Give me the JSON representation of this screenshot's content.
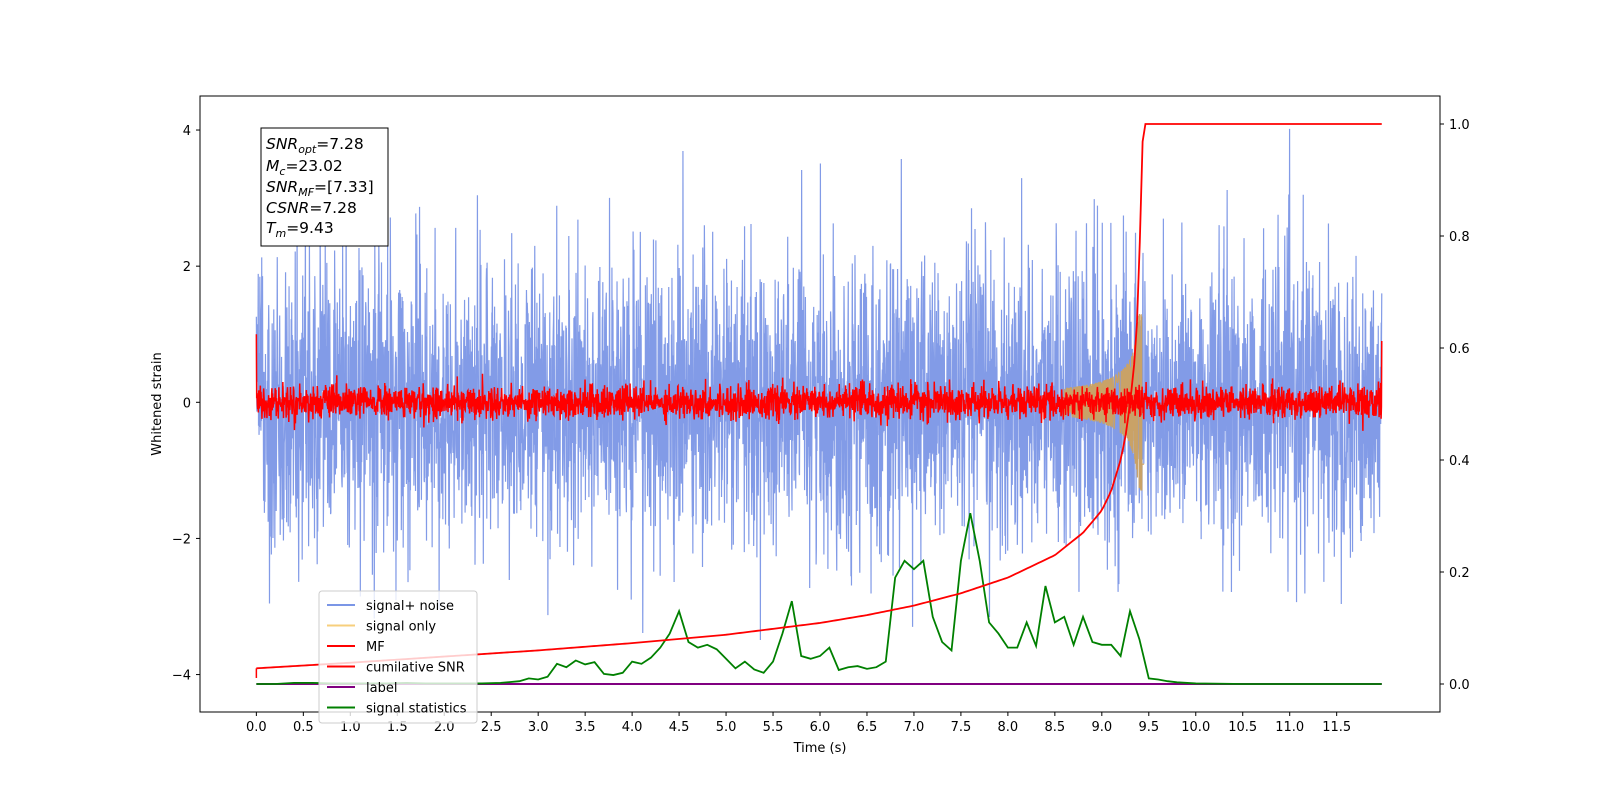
{
  "chart_data": {
    "type": "line",
    "xlabel": "Time (s)",
    "ylabel": "Whitened strain",
    "xlim": [
      -0.6,
      12.6
    ],
    "ylim": [
      -4.55,
      4.5
    ],
    "y2lim": [
      -0.05,
      1.05
    ],
    "xticks": [
      "0.0",
      "0.5",
      "1.0",
      "1.5",
      "2.0",
      "2.5",
      "3.0",
      "3.5",
      "4.0",
      "4.5",
      "5.0",
      "5.5",
      "6.0",
      "6.5",
      "7.0",
      "7.5",
      "8.0",
      "8.5",
      "9.0",
      "9.5",
      "10.0",
      "10.5",
      "11.0",
      "11.5"
    ],
    "yticks_left": [
      "4",
      "2",
      "0",
      "−2",
      "−4"
    ],
    "yticks_right": [
      "1.0",
      "0.8",
      "0.6",
      "0.4",
      "0.2",
      "0.0"
    ],
    "legend_position": "lower-left",
    "legend": [
      {
        "label": "signal+ noise",
        "color": "#7b96e6"
      },
      {
        "label": "signal only",
        "color": "#f7cf7c"
      },
      {
        "label": "MF",
        "color": "#ff0000"
      },
      {
        "label": "cumilative SNR",
        "color": "#ff0000"
      },
      {
        "label": "label",
        "color": "#800080"
      },
      {
        "label": "signal statistics",
        "color": "#008000"
      }
    ],
    "info_box": {
      "snr_opt": {
        "base": "SNR",
        "sub": "opt",
        "value": "=7.28"
      },
      "mc": {
        "base": "M",
        "sub": "c",
        "value": "=23.02"
      },
      "snr_mf": {
        "base": "SNR",
        "sub": "MF",
        "value": "=[7.33]"
      },
      "csnr": {
        "base": "CSNR",
        "value": "=7.28"
      },
      "tm": {
        "base": "T",
        "sub": "m",
        "value": "=9.43"
      }
    },
    "series": [
      {
        "name": "signal+ noise",
        "axis": "left",
        "summary": {
          "t_start": 0.0,
          "t_end": 11.98,
          "sigma": 1.0,
          "min": -4.15,
          "max": 4.1
        }
      },
      {
        "name": "signal only",
        "axis": "left",
        "summary": {
          "t_merger": 9.43,
          "peak_amplitude": 1.3
        }
      },
      {
        "name": "MF",
        "axis": "left",
        "summary": {
          "t_start": 0.0,
          "t_end": 11.98,
          "sigma": 0.12,
          "start_value": 1.0,
          "end_value": 0.9
        }
      },
      {
        "name": "cumilative SNR",
        "axis": "right",
        "x": [
          0.0,
          1.0,
          2.0,
          3.0,
          4.0,
          5.0,
          6.0,
          6.5,
          7.0,
          7.5,
          8.0,
          8.5,
          8.8,
          9.0,
          9.1,
          9.2,
          9.25,
          9.3,
          9.35,
          9.38,
          9.41,
          9.43,
          9.45,
          10.0,
          11.0,
          11.98
        ],
        "y": [
          0.028,
          0.038,
          0.049,
          0.06,
          0.073,
          0.088,
          0.109,
          0.123,
          0.14,
          0.162,
          0.19,
          0.23,
          0.27,
          0.31,
          0.345,
          0.4,
          0.44,
          0.5,
          0.58,
          0.66,
          0.82,
          0.96,
          1.0,
          1.0,
          1.0,
          1.0
        ]
      },
      {
        "name": "label",
        "axis": "right",
        "x": [
          0.0,
          11.98
        ],
        "y": [
          0.0,
          0.0
        ]
      },
      {
        "name": "signal statistics",
        "axis": "right",
        "x": [
          0.0,
          0.2,
          0.4,
          0.6,
          0.8,
          1.0,
          1.2,
          1.4,
          1.6,
          1.8,
          2.0,
          2.2,
          2.4,
          2.6,
          2.8,
          2.9,
          3.0,
          3.1,
          3.2,
          3.3,
          3.4,
          3.5,
          3.6,
          3.7,
          3.8,
          3.9,
          4.0,
          4.1,
          4.2,
          4.3,
          4.4,
          4.5,
          4.6,
          4.7,
          4.8,
          4.9,
          5.0,
          5.1,
          5.2,
          5.3,
          5.4,
          5.5,
          5.6,
          5.7,
          5.8,
          5.9,
          6.0,
          6.1,
          6.2,
          6.3,
          6.4,
          6.5,
          6.6,
          6.7,
          6.8,
          6.9,
          7.0,
          7.1,
          7.2,
          7.3,
          7.4,
          7.5,
          7.6,
          7.7,
          7.8,
          7.9,
          8.0,
          8.1,
          8.2,
          8.3,
          8.4,
          8.5,
          8.6,
          8.7,
          8.8,
          8.9,
          9.0,
          9.1,
          9.2,
          9.3,
          9.4,
          9.5,
          9.6,
          9.7,
          9.8,
          10.0,
          10.5,
          11.0,
          11.5,
          11.98
        ],
        "y": [
          0.0,
          0.0,
          0.002,
          0.002,
          0.001,
          0.001,
          0.001,
          0.001,
          0.002,
          0.001,
          0.001,
          0.001,
          0.001,
          0.002,
          0.005,
          0.01,
          0.008,
          0.013,
          0.036,
          0.03,
          0.042,
          0.035,
          0.039,
          0.018,
          0.016,
          0.02,
          0.04,
          0.036,
          0.047,
          0.065,
          0.09,
          0.13,
          0.075,
          0.065,
          0.07,
          0.062,
          0.045,
          0.028,
          0.04,
          0.026,
          0.02,
          0.04,
          0.09,
          0.148,
          0.05,
          0.045,
          0.05,
          0.065,
          0.025,
          0.03,
          0.032,
          0.027,
          0.03,
          0.04,
          0.19,
          0.22,
          0.205,
          0.22,
          0.12,
          0.075,
          0.06,
          0.22,
          0.305,
          0.22,
          0.11,
          0.09,
          0.065,
          0.065,
          0.11,
          0.068,
          0.175,
          0.11,
          0.12,
          0.07,
          0.12,
          0.075,
          0.07,
          0.07,
          0.05,
          0.13,
          0.08,
          0.01,
          0.008,
          0.005,
          0.003,
          0.001,
          0.0,
          0.0,
          0.0,
          0.0
        ]
      }
    ]
  }
}
